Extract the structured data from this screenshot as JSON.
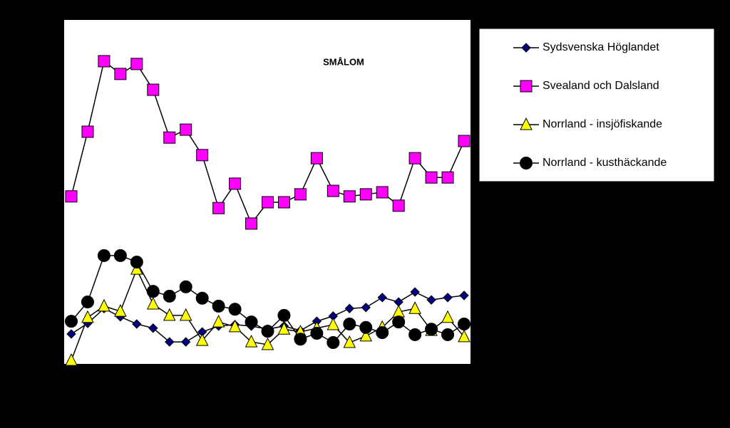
{
  "chart_data": {
    "type": "line",
    "title": "SMÅLOM",
    "categories": [
      null,
      null,
      null,
      null,
      null,
      null,
      null,
      null,
      null,
      null,
      null,
      null,
      null,
      null,
      null,
      null,
      null,
      null,
      null,
      null,
      null,
      null,
      null,
      null,
      null
    ],
    "ylim": [
      0,
      100
    ],
    "series": [
      {
        "name": "Sydsvenska Höglandet",
        "color": "#000080",
        "marker": "diamond",
        "values": [
          8.7,
          11.8,
          16.1,
          13.7,
          11.6,
          10.4,
          6.4,
          6.4,
          9.3,
          11.0,
          11.4,
          11.0,
          10.1,
          11.0,
          9.7,
          12.4,
          13.9,
          16.1,
          16.4,
          19.3,
          18.0,
          20.9,
          18.6,
          19.3,
          19.9
        ]
      },
      {
        "name": "Svealand och Dalsland",
        "color": "#ff00ff",
        "marker": "square",
        "values": [
          48.7,
          67.5,
          88.0,
          84.3,
          87.2,
          79.7,
          65.8,
          68.1,
          60.7,
          45.3,
          52.4,
          40.8,
          47.0,
          47.0,
          49.3,
          59.8,
          50.3,
          48.7,
          49.3,
          49.9,
          46.0,
          59.8,
          54.2,
          54.2,
          64.8
        ]
      },
      {
        "name": "Norrland - insjöfiskande",
        "color": "#ffff00",
        "marker": "triangle",
        "values": [
          1.0,
          13.5,
          16.8,
          15.3,
          27.5,
          17.4,
          14.1,
          14.1,
          6.8,
          12.2,
          10.8,
          6.4,
          5.6,
          10.1,
          9.3,
          10.4,
          11.4,
          6.2,
          8.1,
          10.6,
          15.1,
          16.1,
          9.7,
          13.5,
          7.9
        ]
      },
      {
        "name": "Norrland - kusthäckande",
        "color": "#000000",
        "marker": "circle",
        "values": [
          12.4,
          18.0,
          31.5,
          31.5,
          29.6,
          21.1,
          19.7,
          22.4,
          19.1,
          16.8,
          15.9,
          12.2,
          9.5,
          14.1,
          7.2,
          8.9,
          6.2,
          11.6,
          10.6,
          9.1,
          12.2,
          8.5,
          10.1,
          8.5,
          11.6
        ]
      }
    ]
  }
}
